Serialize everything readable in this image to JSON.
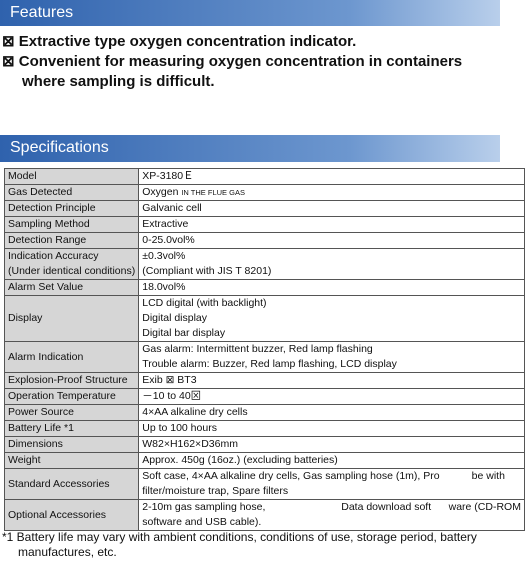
{
  "features": {
    "title": "Features",
    "items": [
      "⊠  Extractive type oxygen concentration indicator.",
      "⊠  Convenient for measuring oxygen concentration in containers where sampling is difficult."
    ]
  },
  "specifications": {
    "title": "Specifications",
    "rows": [
      {
        "label": [
          "Model"
        ],
        "value": [
          "XP-3180Ｅ"
        ]
      },
      {
        "label": [
          "Gas Detected"
        ],
        "value": [
          "Oxygen"
        ],
        "value_note": "IN THE FLUE GAS"
      },
      {
        "label": [
          "Detection Principle"
        ],
        "value": [
          "Galvanic cell"
        ]
      },
      {
        "label": [
          "Sampling Method"
        ],
        "value": [
          "Extractive"
        ]
      },
      {
        "label": [
          "Detection Range"
        ],
        "value": [
          "0-25.0vol%"
        ]
      },
      {
        "label": [
          "Indication Accuracy",
          "(Under identical conditions)"
        ],
        "value": [
          "±0.3vol%",
          "(Compliant with JIS T 8201)"
        ]
      },
      {
        "label": [
          "Alarm Set Value"
        ],
        "value": [
          "18.0vol%"
        ]
      },
      {
        "label": [
          "Display"
        ],
        "value": [
          "LCD digital (with backlight)",
          "Digital display",
          "Digital bar display"
        ]
      },
      {
        "label": [
          "Alarm Indication"
        ],
        "value": [
          "Gas alarm: Intermittent buzzer, Red lamp flashing",
          "Trouble alarm: Buzzer, Red lamp flashing, LCD display"
        ]
      },
      {
        "label": [
          "Explosion-Proof Structure"
        ],
        "value": [
          "Exib ⊠ BT3"
        ]
      },
      {
        "label": [
          "Operation Temperature"
        ],
        "value": [
          "－10 to 40⊠"
        ]
      },
      {
        "label": [
          "Power Source"
        ],
        "value": [
          "4×AA alkaline dry cells"
        ]
      },
      {
        "label": [
          "Battery Life *1"
        ],
        "value": [
          "Up to 100 hours"
        ]
      },
      {
        "label": [
          "Dimensions"
        ],
        "value": [
          "W82×H162×D36mm"
        ]
      },
      {
        "label": [
          "Weight"
        ],
        "value": [
          "Approx. 450g (16oz.) (excluding batteries)"
        ]
      },
      {
        "label": [
          "Standard Accessories"
        ],
        "value": [
          "Soft case, 4×AA alkaline dry cells, Gas sampling hose (1m), Pro           be with",
          "filter/moisture trap, Spare filters"
        ]
      },
      {
        "label": [
          "Optional Accessories"
        ],
        "value": [
          "2-10m gas sampling hose,                          Data download soft      ware (CD-ROM",
          "software and USB cable)."
        ]
      }
    ]
  },
  "footnote": "*1 Battery life may vary with ambient conditions, conditions of use, storage period, battery manufactures, etc."
}
